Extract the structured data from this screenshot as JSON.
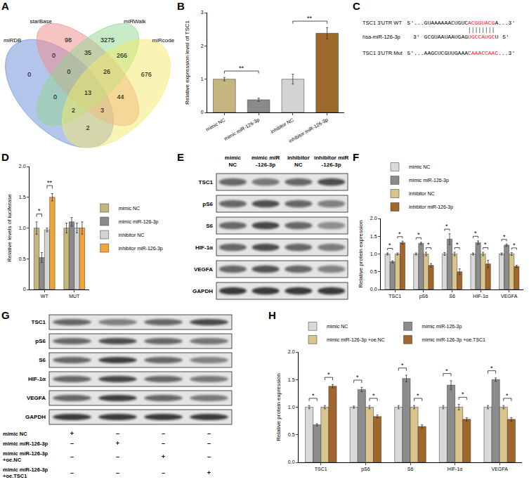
{
  "panel_labels": [
    "A",
    "B",
    "C",
    "D",
    "E",
    "F",
    "G",
    "H"
  ],
  "venn": {
    "sets": [
      {
        "name": "miRDB",
        "color": "#6a8bd9"
      },
      {
        "name": "starBase",
        "color": "#ef8a8a"
      },
      {
        "name": "miRWalk",
        "color": "#8fd68f"
      },
      {
        "name": "miRcode",
        "color": "#f3ea6a"
      }
    ],
    "regions": [
      {
        "sets": [
          "miRDB"
        ],
        "count": 0
      },
      {
        "sets": [
          "starBase"
        ],
        "count": 98
      },
      {
        "sets": [
          "miRWalk"
        ],
        "count": 3275
      },
      {
        "sets": [
          "miRcode"
        ],
        "count": 676
      },
      {
        "sets": [
          "miRDB",
          "starBase"
        ],
        "count": 0
      },
      {
        "sets": [
          "miRDB",
          "miRWalk"
        ],
        "count": 0
      },
      {
        "sets": [
          "miRDB",
          "miRcode"
        ],
        "count": 2
      },
      {
        "sets": [
          "starBase",
          "miRWalk"
        ],
        "count": 35
      },
      {
        "sets": [
          "starBase",
          "miRcode"
        ],
        "count": 44
      },
      {
        "sets": [
          "miRWalk",
          "miRcode"
        ],
        "count": 266
      },
      {
        "sets": [
          "miRDB",
          "starBase",
          "miRWalk"
        ],
        "count": 0
      },
      {
        "sets": [
          "miRDB",
          "starBase",
          "miRcode"
        ],
        "count": 3
      },
      {
        "sets": [
          "miRDB",
          "miRWalk",
          "miRcode"
        ],
        "count": 2
      },
      {
        "sets": [
          "starBase",
          "miRWalk",
          "miRcode"
        ],
        "count": 26
      },
      {
        "sets": [
          "miRDB",
          "starBase",
          "miRWalk",
          "miRcode"
        ],
        "count": 13
      }
    ]
  },
  "chart_data": [
    {
      "type": "bar",
      "y_label": "Relative expression level of TSC1",
      "categories": [
        "mimic NC",
        "mimic miR-126-3p",
        "inhibitor NC",
        "inhibitor miR-126-3p"
      ],
      "values": [
        1.0,
        0.38,
        1.0,
        2.38
      ],
      "errors": [
        0.05,
        0.05,
        0.15,
        0.17
      ],
      "colors": [
        "#c4b67e",
        "#8a8a8a",
        "#d3d3d3",
        "#9e6a2c"
      ],
      "ylim": [
        0,
        3
      ],
      "yticks": [
        0,
        1,
        2,
        3
      ],
      "grid": false,
      "significance": [
        {
          "between": [
            "mimic NC",
            "mimic miR-126-3p"
          ],
          "label": "**"
        },
        {
          "between": [
            "inhibitor NC",
            "inhibitor miR-126-3p"
          ],
          "label": "**"
        }
      ]
    },
    {
      "type": "bar",
      "y_label": "Relative levels of luciferase",
      "categories": [
        "WT",
        "MUT"
      ],
      "series": [
        {
          "name": "mimic NC",
          "color": "#c4b67e",
          "values": [
            1.0,
            1.0
          ],
          "errors": [
            0.1,
            0.08
          ]
        },
        {
          "name": "mimic miR-126-3p",
          "color": "#8a8a8a",
          "values": [
            0.52,
            1.1
          ],
          "errors": [
            0.08,
            0.07
          ]
        },
        {
          "name": "inhibitor NC",
          "color": "#d3d3d3",
          "values": [
            0.97,
            1.0
          ],
          "errors": [
            0.03,
            0.08
          ]
        },
        {
          "name": "inhibitor miR-126-3p",
          "color": "#f0a53a",
          "values": [
            1.5,
            1.0
          ],
          "errors": [
            0.06,
            0.1
          ]
        }
      ],
      "ylim": [
        0,
        2
      ],
      "yticks": [
        0,
        0.5,
        {
          "value": 1,
          "label": "1.0"
        },
        1.5,
        {
          "value": 2,
          "label": "2.0"
        }
      ],
      "grid": false,
      "legend": "right",
      "significance": [
        {
          "category": "WT",
          "between": [
            "mimic NC",
            "mimic miR-126-3p"
          ],
          "label": "*"
        },
        {
          "category": "WT",
          "between": [
            "inhibitor NC",
            "inhibitor miR-126-3p"
          ],
          "label": "**"
        }
      ]
    },
    {
      "type": "bar",
      "y_label": "Relative protein expression",
      "categories": [
        "TSC1",
        "pS6",
        "S6",
        "HIF-1α",
        "VEGFA"
      ],
      "series": [
        {
          "name": "mimic NC",
          "color": "#d9d9d9",
          "values": [
            1.0,
            1.0,
            1.0,
            1.0,
            1.0
          ],
          "errors": [
            0.03,
            0.03,
            0.04,
            0.03,
            0.03
          ]
        },
        {
          "name": "mimic miR-126-3p",
          "color": "#8c8c8c",
          "values": [
            0.78,
            1.3,
            1.42,
            1.32,
            1.25
          ],
          "errors": [
            0.03,
            0.03,
            0.15,
            0.05,
            0.03
          ]
        },
        {
          "name": "inhibitor NC",
          "color": "#d8c48c",
          "values": [
            1.0,
            1.0,
            1.0,
            1.0,
            1.0
          ],
          "errors": [
            0.03,
            0.05,
            0.05,
            0.05,
            0.04
          ]
        },
        {
          "name": "inhibitor miR-126-3p",
          "color": "#a0662a",
          "values": [
            1.32,
            0.68,
            0.5,
            0.72,
            0.65
          ],
          "errors": [
            0.04,
            0.05,
            0.08,
            0.1,
            0.03
          ]
        }
      ],
      "ylim": [
        0,
        2
      ],
      "yticks": [
        {
          "value": 0,
          "label": "0.0"
        },
        0.5,
        {
          "value": 1,
          "label": "1.0"
        },
        1.5,
        {
          "value": 2,
          "label": "2.0"
        }
      ],
      "grid": false,
      "legend": "top",
      "significance": [
        {
          "category": "TSC1",
          "between": [
            "mimic NC",
            "mimic miR-126-3p"
          ],
          "label": "*"
        },
        {
          "category": "TSC1",
          "between": [
            "inhibitor NC",
            "inhibitor miR-126-3p"
          ],
          "label": "*"
        },
        {
          "category": "pS6",
          "between": [
            "mimic NC",
            "mimic miR-126-3p"
          ],
          "label": "*"
        },
        {
          "category": "pS6",
          "between": [
            "inhibitor NC",
            "inhibitor miR-126-3p"
          ],
          "label": "*"
        },
        {
          "category": "S6",
          "between": [
            "mimic NC",
            "mimic miR-126-3p"
          ],
          "label": "*"
        },
        {
          "category": "S6",
          "between": [
            "inhibitor NC",
            "inhibitor miR-126-3p"
          ],
          "label": "*"
        },
        {
          "category": "HIF-1α",
          "between": [
            "mimic NC",
            "mimic miR-126-3p"
          ],
          "label": "*"
        },
        {
          "category": "HIF-1α",
          "between": [
            "inhibitor NC",
            "inhibitor miR-126-3p"
          ],
          "label": "*"
        },
        {
          "category": "VEGFA",
          "between": [
            "mimic NC",
            "mimic miR-126-3p"
          ],
          "label": "*"
        },
        {
          "category": "VEGFA",
          "between": [
            "inhibitor NC",
            "inhibitor miR-126-3p"
          ],
          "label": "*"
        }
      ]
    },
    {
      "type": "bar",
      "y_label": "Relative protein expression",
      "categories": [
        "TSC1",
        "pS6",
        "S6",
        "HIF-1α",
        "VEGFA"
      ],
      "series": [
        {
          "name": "mimic NC",
          "color": "#d9d9d9",
          "values": [
            1.0,
            1.0,
            1.0,
            1.0,
            1.0
          ],
          "errors": [
            0.03,
            0.02,
            0.03,
            0.03,
            0.03
          ]
        },
        {
          "name": "mimic miR-126-3p",
          "color": "#8c8c8c",
          "values": [
            0.68,
            1.32,
            1.52,
            1.4,
            1.5
          ],
          "errors": [
            0.02,
            0.04,
            0.06,
            0.08,
            0.03
          ]
        },
        {
          "name": "mimic miR-126-3p +oe.NC",
          "color": "#d8c48c",
          "values": [
            1.0,
            1.0,
            1.0,
            1.0,
            1.0
          ],
          "errors": [
            0.03,
            0.03,
            0.03,
            0.05,
            0.03
          ]
        },
        {
          "name": "mimic miR-126-3p +oe.TSC1",
          "color": "#a0662a",
          "values": [
            1.38,
            0.83,
            0.65,
            0.78,
            0.78
          ],
          "errors": [
            0.03,
            0.03,
            0.03,
            0.03,
            0.03
          ]
        }
      ],
      "ylim": [
        0,
        2
      ],
      "yticks": [
        {
          "value": 0,
          "label": "0.0"
        },
        0.5,
        {
          "value": 1,
          "label": "1.0"
        },
        1.5,
        {
          "value": 2,
          "label": "2.0"
        }
      ],
      "grid": false,
      "legend": "top",
      "significance": [
        {
          "category": "TSC1",
          "between": [
            "mimic NC",
            "mimic miR-126-3p"
          ],
          "label": "*"
        },
        {
          "category": "TSC1",
          "between": [
            "mimic miR-126-3p +oe.NC",
            "mimic miR-126-3p +oe.TSC1"
          ],
          "label": "*"
        },
        {
          "category": "pS6",
          "between": [
            "mimic NC",
            "mimic miR-126-3p"
          ],
          "label": "*"
        },
        {
          "category": "pS6",
          "between": [
            "mimic miR-126-3p +oe.NC",
            "mimic miR-126-3p +oe.TSC1"
          ],
          "label": "*"
        },
        {
          "category": "S6",
          "between": [
            "mimic NC",
            "mimic miR-126-3p"
          ],
          "label": "*"
        },
        {
          "category": "S6",
          "between": [
            "mimic miR-126-3p +oe.NC",
            "mimic miR-126-3p +oe.TSC1"
          ],
          "label": "*"
        },
        {
          "category": "HIF-1α",
          "between": [
            "mimic NC",
            "mimic miR-126-3p"
          ],
          "label": "*"
        },
        {
          "category": "HIF-1α",
          "between": [
            "mimic miR-126-3p +oe.NC",
            "mimic miR-126-3p +oe.TSC1"
          ],
          "label": "*"
        },
        {
          "category": "VEGFA",
          "between": [
            "mimic NC",
            "mimic miR-126-3p"
          ],
          "label": "*"
        },
        {
          "category": "VEGFA",
          "between": [
            "mimic miR-126-3p +oe.NC",
            "mimic miR-126-3p +oe.TSC1"
          ],
          "label": "*"
        }
      ]
    }
  ],
  "sequence_alignment": {
    "site_color": "#e0201a",
    "rows": [
      {
        "name": "TSC1 3'UTR WT",
        "before": "5'...GUAAAAAACUGUC",
        "site": "ACGGUACG",
        "after": "A...3'"
      },
      {
        "name": "hsa-miR-126-3p",
        "left_end": "3'",
        "before": "GCGUAAUAAUGAG",
        "site": "UGCCAUGC",
        "after": "U",
        "right_end": "5'"
      },
      {
        "name": "TSC1 3'UTR Mut",
        "before": "5'...AAGCUCGUUGAAA",
        "site": "CAAACCAAC",
        "after": "...3'"
      }
    ]
  },
  "blot_E": {
    "lanes": [
      [
        "mimic",
        "NC"
      ],
      [
        "mimic miR",
        "-126-3p"
      ],
      [
        "inhibitor",
        "NC"
      ],
      [
        "inhibitor miR",
        "-126-3p"
      ]
    ],
    "rows": [
      "TSC1",
      "pS6",
      "S6",
      "HIF-1α",
      "VEGFA",
      "GAPDH"
    ]
  },
  "blot_G": {
    "rows": [
      "TSC1",
      "pS6",
      "S6",
      "HIF-1α",
      "VEGFA",
      "GAPDH"
    ],
    "conditions": [
      {
        "label": [
          "mimic NC"
        ],
        "marks": [
          "+",
          "–",
          "–",
          "–"
        ]
      },
      {
        "label": [
          "mimic miR-126-3p"
        ],
        "marks": [
          "–",
          "+",
          "–",
          "–"
        ]
      },
      {
        "label": [
          "mimic miR-126-3p",
          "+oe.NC"
        ],
        "marks": [
          "–",
          "–",
          "+",
          "–"
        ]
      },
      {
        "label": [
          "mimic miR-126-3p",
          "+oe.TSC1"
        ],
        "marks": [
          "–",
          "–",
          "–",
          "+"
        ]
      }
    ]
  }
}
